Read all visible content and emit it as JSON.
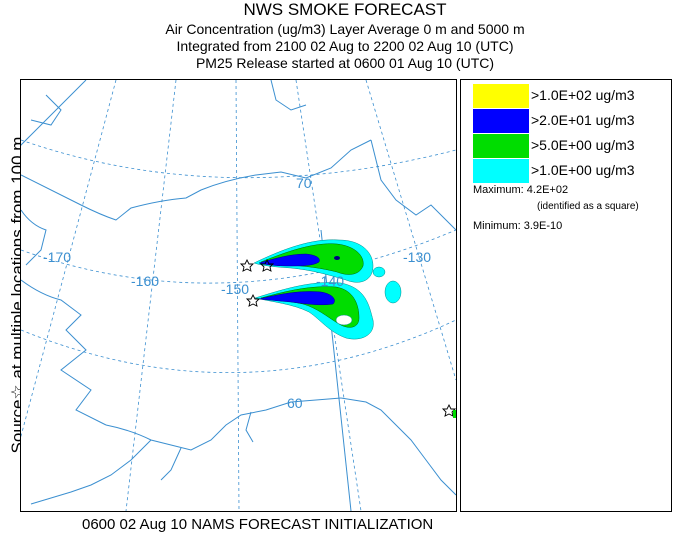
{
  "header": {
    "title": "NWS SMOKE FORECAST",
    "line1": "Air Concentration (ug/m3) Layer Average    0 m and  5000 m",
    "line2": "Integrated from 2100 02 Aug to 2200 02 Aug 10 (UTC)",
    "line3": "PM25 Release started at 0600 01 Aug 10 (UTC)"
  },
  "side_label": {
    "source": "Source☆",
    "at": "at multiple locations",
    "from": "from",
    "height": "100 m"
  },
  "footer": "0600 02 Aug 10 NAMS FORECAST INITIALIZATION",
  "legend": {
    "items": [
      {
        "label": ">1.0E+02 ug/m3",
        "color": "#ffff00"
      },
      {
        "label": ">2.0E+01 ug/m3",
        "color": "#0000ff"
      },
      {
        "label": ">5.0E+00 ug/m3",
        "color": "#00dd00"
      },
      {
        "label": ">1.0E+00 ug/m3",
        "color": "#00ffff"
      }
    ],
    "maximum_label": "Maximum:",
    "maximum_value": "4.2E+02",
    "max_note": "(identified as a square)",
    "minimum_label": "Minimum:",
    "minimum_value": "3.9E-10"
  },
  "map": {
    "graticule_labels": {
      "lon170": "-170",
      "lon160": "-160",
      "lon150": "-150",
      "lon140": "-140",
      "lon130": "-130",
      "lat70": "70",
      "lat60": "60"
    },
    "colors": {
      "coast": "#3b8fd0",
      "grid": "#3b8fd0"
    }
  }
}
